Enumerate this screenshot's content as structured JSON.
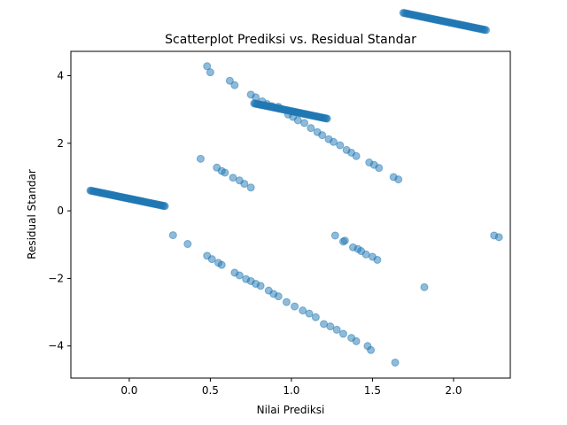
{
  "chart_data": {
    "type": "scatter",
    "title": "Scatterplot Prediksi vs. Residual Standar",
    "xlabel": "Nilai Prediksi",
    "ylabel": "Residual Standar",
    "xlim": [
      -0.36,
      2.35
    ],
    "ylim": [
      -4.95,
      4.72
    ],
    "xticks": [
      0.0,
      0.5,
      1.0,
      1.5,
      2.0
    ],
    "xtick_labels": [
      "0.0",
      "0.5",
      "1.0",
      "1.5",
      "2.0"
    ],
    "yticks": [
      -4,
      -2,
      0,
      2,
      4
    ],
    "ytick_labels": [
      "−4",
      "−2",
      "0",
      "2",
      "4"
    ],
    "grid": false,
    "marker_color": "#1f77b4",
    "marker_alpha": 0.5,
    "bands": [
      {
        "name": "band-1",
        "x_start": -0.24,
        "x_end": 0.22,
        "offset": 0.36,
        "n": 70
      },
      {
        "name": "band-2",
        "x_start": 0.77,
        "x_end": 1.22,
        "offset": 3.95,
        "n": 70
      },
      {
        "name": "band-3",
        "x_start": 1.69,
        "x_end": 2.2,
        "offset": 7.55,
        "n": 70
      }
    ],
    "points": [
      {
        "x": 0.27,
        "y": -0.72
      },
      {
        "x": 0.36,
        "y": -0.98
      },
      {
        "x": 0.44,
        "y": 1.54
      },
      {
        "x": 0.54,
        "y": 1.28
      },
      {
        "x": 0.57,
        "y": 1.18
      },
      {
        "x": 0.59,
        "y": 1.13
      },
      {
        "x": 0.64,
        "y": 0.98
      },
      {
        "x": 0.68,
        "y": 0.9
      },
      {
        "x": 0.71,
        "y": 0.8
      },
      {
        "x": 0.75,
        "y": 0.69
      },
      {
        "x": 1.27,
        "y": -0.73
      },
      {
        "x": 1.32,
        "y": -0.91
      },
      {
        "x": 1.33,
        "y": -0.88
      },
      {
        "x": 1.38,
        "y": -1.08
      },
      {
        "x": 1.41,
        "y": -1.13
      },
      {
        "x": 1.43,
        "y": -1.19
      },
      {
        "x": 1.46,
        "y": -1.29
      },
      {
        "x": 1.5,
        "y": -1.36
      },
      {
        "x": 1.53,
        "y": -1.45
      },
      {
        "x": 0.48,
        "y": -1.33
      },
      {
        "x": 0.51,
        "y": -1.43
      },
      {
        "x": 0.55,
        "y": -1.54
      },
      {
        "x": 0.57,
        "y": -1.6
      },
      {
        "x": 0.65,
        "y": -1.83
      },
      {
        "x": 0.68,
        "y": -1.91
      },
      {
        "x": 0.72,
        "y": -2.02
      },
      {
        "x": 0.75,
        "y": -2.08
      },
      {
        "x": 0.78,
        "y": -2.16
      },
      {
        "x": 0.81,
        "y": -2.22
      },
      {
        "x": 0.86,
        "y": -2.36
      },
      {
        "x": 0.89,
        "y": -2.46
      },
      {
        "x": 0.92,
        "y": -2.53
      },
      {
        "x": 0.97,
        "y": -2.7
      },
      {
        "x": 1.02,
        "y": -2.83
      },
      {
        "x": 1.07,
        "y": -2.95
      },
      {
        "x": 1.11,
        "y": -3.04
      },
      {
        "x": 1.15,
        "y": -3.15
      },
      {
        "x": 1.2,
        "y": -3.35
      },
      {
        "x": 1.24,
        "y": -3.42
      },
      {
        "x": 1.28,
        "y": -3.52
      },
      {
        "x": 1.32,
        "y": -3.64
      },
      {
        "x": 1.37,
        "y": -3.76
      },
      {
        "x": 1.4,
        "y": -3.86
      },
      {
        "x": 1.47,
        "y": -4.0
      },
      {
        "x": 1.49,
        "y": -4.12
      },
      {
        "x": 1.64,
        "y": -4.49
      },
      {
        "x": 0.48,
        "y": 4.28
      },
      {
        "x": 0.5,
        "y": 4.1
      },
      {
        "x": 0.62,
        "y": 3.85
      },
      {
        "x": 0.65,
        "y": 3.72
      },
      {
        "x": 0.75,
        "y": 3.44
      },
      {
        "x": 0.78,
        "y": 3.36
      },
      {
        "x": 0.82,
        "y": 3.24
      },
      {
        "x": 0.85,
        "y": 3.16
      },
      {
        "x": 0.88,
        "y": 3.1
      },
      {
        "x": 0.92,
        "y": 3.08
      },
      {
        "x": 0.98,
        "y": 2.85
      },
      {
        "x": 1.01,
        "y": 2.78
      },
      {
        "x": 1.04,
        "y": 2.68
      },
      {
        "x": 1.08,
        "y": 2.6
      },
      {
        "x": 1.12,
        "y": 2.45
      },
      {
        "x": 1.16,
        "y": 2.33
      },
      {
        "x": 1.19,
        "y": 2.24
      },
      {
        "x": 1.23,
        "y": 2.12
      },
      {
        "x": 1.26,
        "y": 2.04
      },
      {
        "x": 1.3,
        "y": 1.94
      },
      {
        "x": 1.34,
        "y": 1.8
      },
      {
        "x": 1.37,
        "y": 1.72
      },
      {
        "x": 1.4,
        "y": 1.62
      },
      {
        "x": 1.48,
        "y": 1.43
      },
      {
        "x": 1.51,
        "y": 1.36
      },
      {
        "x": 1.54,
        "y": 1.27
      },
      {
        "x": 1.63,
        "y": 1.0
      },
      {
        "x": 1.66,
        "y": 0.93
      },
      {
        "x": 2.25,
        "y": -0.73
      },
      {
        "x": 2.28,
        "y": -0.78
      },
      {
        "x": 1.82,
        "y": -2.26
      }
    ]
  }
}
